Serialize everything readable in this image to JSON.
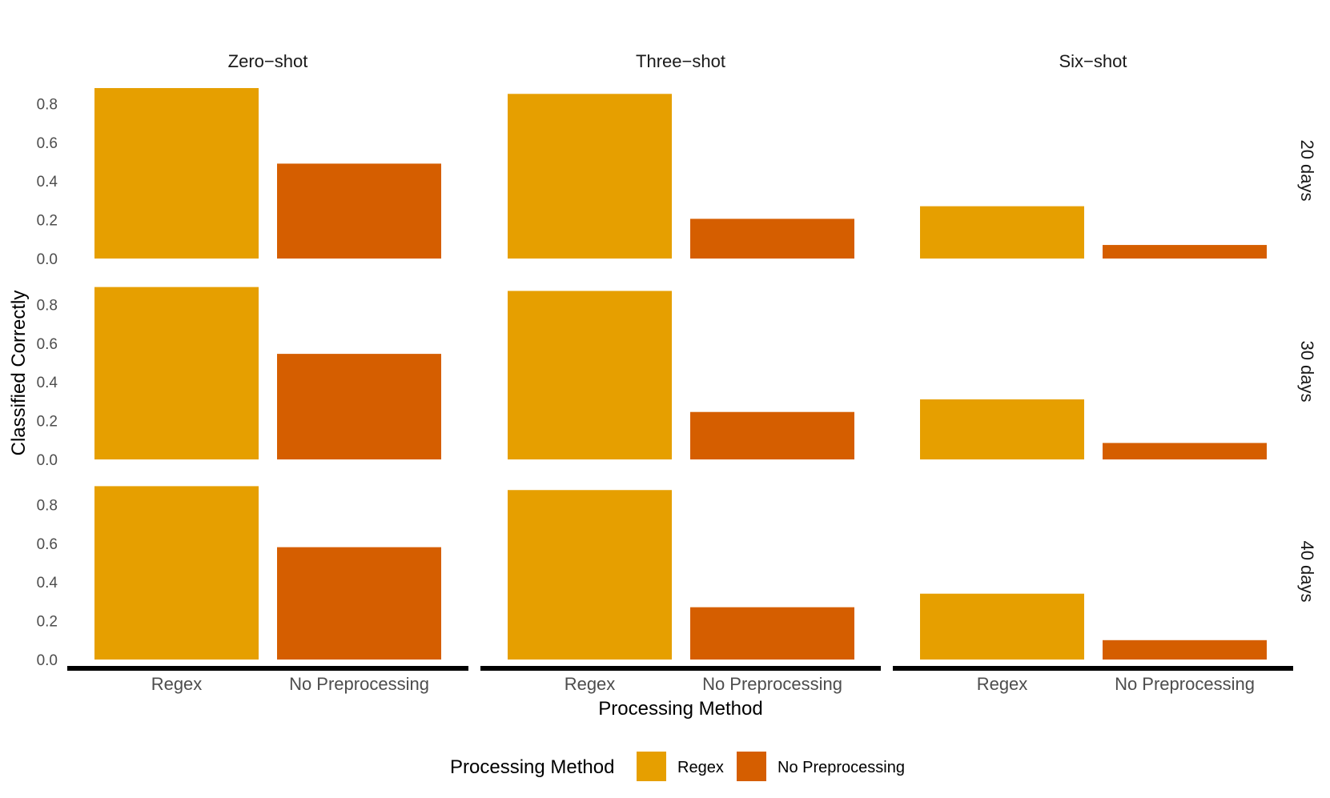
{
  "chart_data": {
    "type": "bar",
    "facet_columns": [
      "Zero−shot",
      "Three−shot",
      "Six−shot"
    ],
    "facet_rows": [
      "20 days",
      "30 days",
      "40 days"
    ],
    "categories": [
      "Regex",
      "No Preprocessing"
    ],
    "colors": {
      "Regex": "#E69F00",
      "No Preprocessing": "#D55E00"
    },
    "xlabel": "Processing Method",
    "ylabel": "Classified Correctly",
    "yticks": [
      "0.0",
      "0.2",
      "0.4",
      "0.6",
      "0.8"
    ],
    "ylim": [
      0,
      0.88
    ],
    "grid": false,
    "legend": {
      "title": "Processing Method",
      "position": "bottom",
      "items": [
        "Regex",
        "No Preprocessing"
      ]
    },
    "panels": [
      {
        "col": "Zero−shot",
        "row": "20 days",
        "values": [
          0.88,
          0.49
        ]
      },
      {
        "col": "Three−shot",
        "row": "20 days",
        "values": [
          0.85,
          0.205
        ]
      },
      {
        "col": "Six−shot",
        "row": "20 days",
        "values": [
          0.27,
          0.07
        ]
      },
      {
        "col": "Zero−shot",
        "row": "30 days",
        "values": [
          0.89,
          0.545
        ]
      },
      {
        "col": "Three−shot",
        "row": "30 days",
        "values": [
          0.87,
          0.245
        ]
      },
      {
        "col": "Six−shot",
        "row": "30 days",
        "values": [
          0.31,
          0.085
        ]
      },
      {
        "col": "Zero−shot",
        "row": "40 days",
        "values": [
          0.895,
          0.58
        ]
      },
      {
        "col": "Three−shot",
        "row": "40 days",
        "values": [
          0.875,
          0.27
        ]
      },
      {
        "col": "Six−shot",
        "row": "40 days",
        "values": [
          0.34,
          0.1
        ]
      }
    ]
  }
}
